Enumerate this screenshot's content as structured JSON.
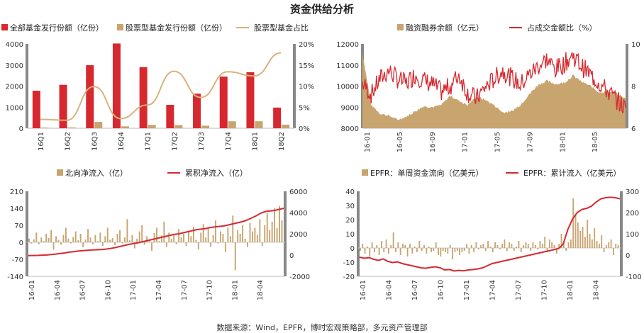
{
  "title": "资金供给分析",
  "source": "数据来源：Wind，EPFR，博时宏观策略部，多元资产管理部",
  "colors": {
    "red": "#d7282f",
    "tan": "#c8a46e",
    "line_tan": "#d9b27c",
    "axis": "#777777"
  },
  "chart_data": [
    {
      "type": "bar",
      "legend": [
        "全部基金发行份额（亿份）",
        "股票型基金发行份额（亿份）",
        "股票型基金占比"
      ],
      "categories": [
        "16Q1",
        "16Q2",
        "16Q3",
        "16Q4",
        "17Q1",
        "17Q2",
        "17Q3",
        "17Q4",
        "18Q1",
        "18Q2"
      ],
      "y_ticks": [
        "0",
        "1000",
        "2000",
        "3000",
        "4000"
      ],
      "y2_ticks": [
        "0%",
        "5%",
        "10%",
        "15%",
        "20%"
      ],
      "ylim": [
        0,
        4000
      ],
      "y2lim": [
        0,
        20
      ],
      "series": [
        {
          "name": "全部基金发行份额（亿份）",
          "type": "bar",
          "values": [
            1780,
            2060,
            2990,
            4020,
            2900,
            1110,
            1640,
            2450,
            2660,
            980
          ]
        },
        {
          "name": "股票型基金发行份额（亿份）",
          "type": "bar",
          "values": [
            30,
            40,
            300,
            90,
            160,
            150,
            120,
            330,
            330,
            170
          ]
        },
        {
          "name": "股票型基金占比",
          "type": "line",
          "axis": "right",
          "values": [
            2.1,
            1.9,
            9.9,
            2.3,
            5.5,
            13.5,
            7.3,
            13.4,
            12.4,
            17.9
          ]
        }
      ]
    },
    {
      "type": "area",
      "legend": [
        "融资融券余额（亿元）",
        "占成交金额比（%）"
      ],
      "x_ticks": [
        "16-01",
        "16-05",
        "16-09",
        "17-01",
        "17-05",
        "17-09",
        "18-01",
        "18-05"
      ],
      "y_ticks": [
        "8000",
        "9000",
        "10000",
        "11000",
        "12000"
      ],
      "y2_ticks": [
        "6",
        "8",
        "10"
      ],
      "ylim": [
        8000,
        12000
      ],
      "y2lim": [
        6,
        12
      ],
      "series": [
        {
          "name": "融资融券余额（亿元）",
          "type": "area",
          "x": [
            "16-01",
            "16-02",
            "16-03",
            "16-04",
            "16-05",
            "16-06",
            "16-07",
            "16-08",
            "16-09",
            "16-10",
            "16-11",
            "16-12",
            "17-01",
            "17-02",
            "17-03",
            "17-04",
            "17-05",
            "17-06",
            "17-07",
            "17-08",
            "17-09",
            "17-10",
            "17-11",
            "17-12",
            "18-01",
            "18-02",
            "18-03",
            "18-04",
            "18-05",
            "18-06",
            "18-07"
          ],
          "values": [
            11600,
            9100,
            8700,
            8600,
            8400,
            8550,
            8800,
            9050,
            9000,
            9100,
            9550,
            9300,
            9100,
            9500,
            9350,
            9100,
            8750,
            8800,
            9100,
            9600,
            10050,
            10250,
            10100,
            10150,
            10500,
            10200,
            10000,
            9700,
            9750,
            9650,
            9400
          ]
        },
        {
          "name": "占成交金额比（%）",
          "type": "line",
          "axis": "right",
          "x": [
            "16-01",
            "16-02",
            "16-03",
            "16-04",
            "16-05",
            "16-06",
            "16-07",
            "16-08",
            "16-09",
            "16-10",
            "16-11",
            "16-12",
            "17-01",
            "17-02",
            "17-03",
            "17-04",
            "17-05",
            "17-06",
            "17-07",
            "17-08",
            "17-09",
            "17-10",
            "17-11",
            "17-12",
            "18-01",
            "18-02",
            "18-03",
            "18-04",
            "18-05",
            "18-06",
            "18-07"
          ],
          "values": [
            9.2,
            8.4,
            9.5,
            10.1,
            9.5,
            9.2,
            9.8,
            9.4,
            9.1,
            8.6,
            9.0,
            9.8,
            8.5,
            8.1,
            8.9,
            9.5,
            10.1,
            9.6,
            9.1,
            9.8,
            10.4,
            10.9,
            10.2,
            10.6,
            11.2,
            10.4,
            9.8,
            9.2,
            8.6,
            8.0,
            7.4
          ]
        }
      ]
    },
    {
      "type": "bar",
      "legend": [
        "北向净流入（亿）",
        "累积净流入（亿）"
      ],
      "x_ticks": [
        "16-01",
        "16-04",
        "16-07",
        "16-10",
        "17-01",
        "17-04",
        "17-07",
        "17-10",
        "18-01",
        "18-04"
      ],
      "y_ticks": [
        "-140",
        "-70",
        "0",
        "70",
        "140",
        "210"
      ],
      "y2_ticks": [
        "-2000",
        "0",
        "2000",
        "4000",
        "6000"
      ],
      "ylim": [
        -140,
        210
      ],
      "y2lim": [
        -2000,
        6000
      ],
      "series": [
        {
          "name": "北向净流入（亿）",
          "type": "bar",
          "values": [
            15,
            -5,
            12,
            40,
            -8,
            20,
            5,
            35,
            18,
            50,
            -30,
            25,
            10,
            -10,
            30,
            60,
            15,
            -5,
            22,
            45,
            8,
            35,
            -20,
            12,
            55,
            20,
            -8,
            30,
            5,
            40,
            -15,
            25,
            60,
            10,
            18,
            -12,
            35,
            50,
            -5,
            20,
            95,
            8,
            30,
            -25,
            15,
            45,
            70,
            -10,
            25,
            12,
            -35,
            38,
            60,
            5,
            28,
            85,
            -20,
            40,
            15,
            30,
            -8,
            55,
            20,
            35,
            -15,
            48,
            25,
            65,
            10,
            -30,
            40,
            75,
            20,
            55,
            -18,
            30,
            90,
            -5,
            45,
            35,
            -40,
            60,
            25,
            110,
            -115,
            50,
            35,
            70,
            15,
            -20,
            80,
            45,
            60,
            30,
            95,
            -15,
            70,
            120,
            50,
            85,
            140,
            60,
            150,
            90
          ]
        },
        {
          "name": "累积净流入（亿）",
          "type": "line",
          "axis": "right",
          "values": [
            -50,
            -40,
            -30,
            -10,
            10,
            50,
            90,
            150,
            200,
            280,
            320,
            380,
            420,
            450,
            480,
            500,
            520,
            560,
            620,
            700,
            800,
            900,
            1000,
            1080,
            1150,
            1250,
            1350,
            1450,
            1550,
            1650,
            1750,
            1850,
            1950,
            2000,
            2100,
            2200,
            2300,
            2400,
            2450,
            2500,
            2600,
            2650,
            2700,
            2750,
            2850,
            2950,
            3050,
            3150,
            3300,
            3500,
            3700,
            3950,
            4100,
            4150,
            4200,
            4300,
            4400
          ]
        }
      ]
    },
    {
      "type": "bar",
      "legend": [
        "EPFR：单周资金流向（亿美元）",
        "EPFR：累计流入（亿美元）"
      ],
      "x_ticks": [
        "16-01",
        "16-04",
        "16-07",
        "16-10",
        "17-01",
        "17-04",
        "17-07",
        "17-10",
        "18-01",
        "18-04"
      ],
      "y_ticks": [
        "-20",
        "-10",
        "0",
        "10",
        "20",
        "30",
        "40"
      ],
      "y2_ticks": [
        "-100",
        "0",
        "100",
        "200",
        "300"
      ],
      "ylim": [
        -20,
        40
      ],
      "y2lim": [
        -100,
        300
      ],
      "series": [
        {
          "name": "EPFR：单周资金流向（亿美元）",
          "type": "bar",
          "values": [
            -2,
            3,
            -4,
            1,
            -6,
            4,
            -3,
            2,
            -5,
            5,
            -3,
            6,
            -4,
            2,
            11,
            -3,
            4,
            -5,
            3,
            2,
            -6,
            3,
            -4,
            1,
            -3,
            5,
            -2,
            2,
            -4,
            1,
            -3,
            -2,
            4,
            -5,
            -6,
            -2,
            -3,
            -4,
            2,
            -8,
            -3,
            -2,
            -5,
            -3,
            -2,
            3,
            -4,
            2,
            -3,
            4,
            -1,
            2,
            3,
            -2,
            5,
            1,
            -3,
            4,
            2,
            -1,
            3,
            6,
            -2,
            4,
            3,
            -2,
            1,
            5,
            -3,
            2,
            4,
            3,
            -2,
            4,
            2,
            -1,
            5,
            3,
            8,
            -3,
            6,
            4,
            2,
            -4,
            3,
            10,
            5,
            -2,
            4,
            6,
            35,
            24,
            18,
            12,
            15,
            8,
            20,
            10,
            6,
            14,
            5,
            3,
            9,
            -3,
            2,
            4,
            6,
            -5,
            3,
            2
          ]
        },
        {
          "name": "EPFR：累计流入（亿美元）",
          "type": "line",
          "axis": "right",
          "values": [
            -10,
            -15,
            -12,
            -20,
            -25,
            -18,
            -30,
            -35,
            -32,
            -40,
            -45,
            -50,
            -55,
            -60,
            -62,
            -58,
            -55,
            -60,
            -70,
            -68,
            -75,
            -72,
            -74,
            -70,
            -68,
            -65,
            -60,
            -50,
            -40,
            -35,
            -30,
            -25,
            -20,
            -15,
            -10,
            -5,
            0,
            5,
            10,
            15,
            20,
            25,
            30,
            50,
            120,
            170,
            200,
            215,
            220,
            230,
            250,
            265,
            270,
            272,
            270,
            265
          ]
        }
      ]
    }
  ]
}
